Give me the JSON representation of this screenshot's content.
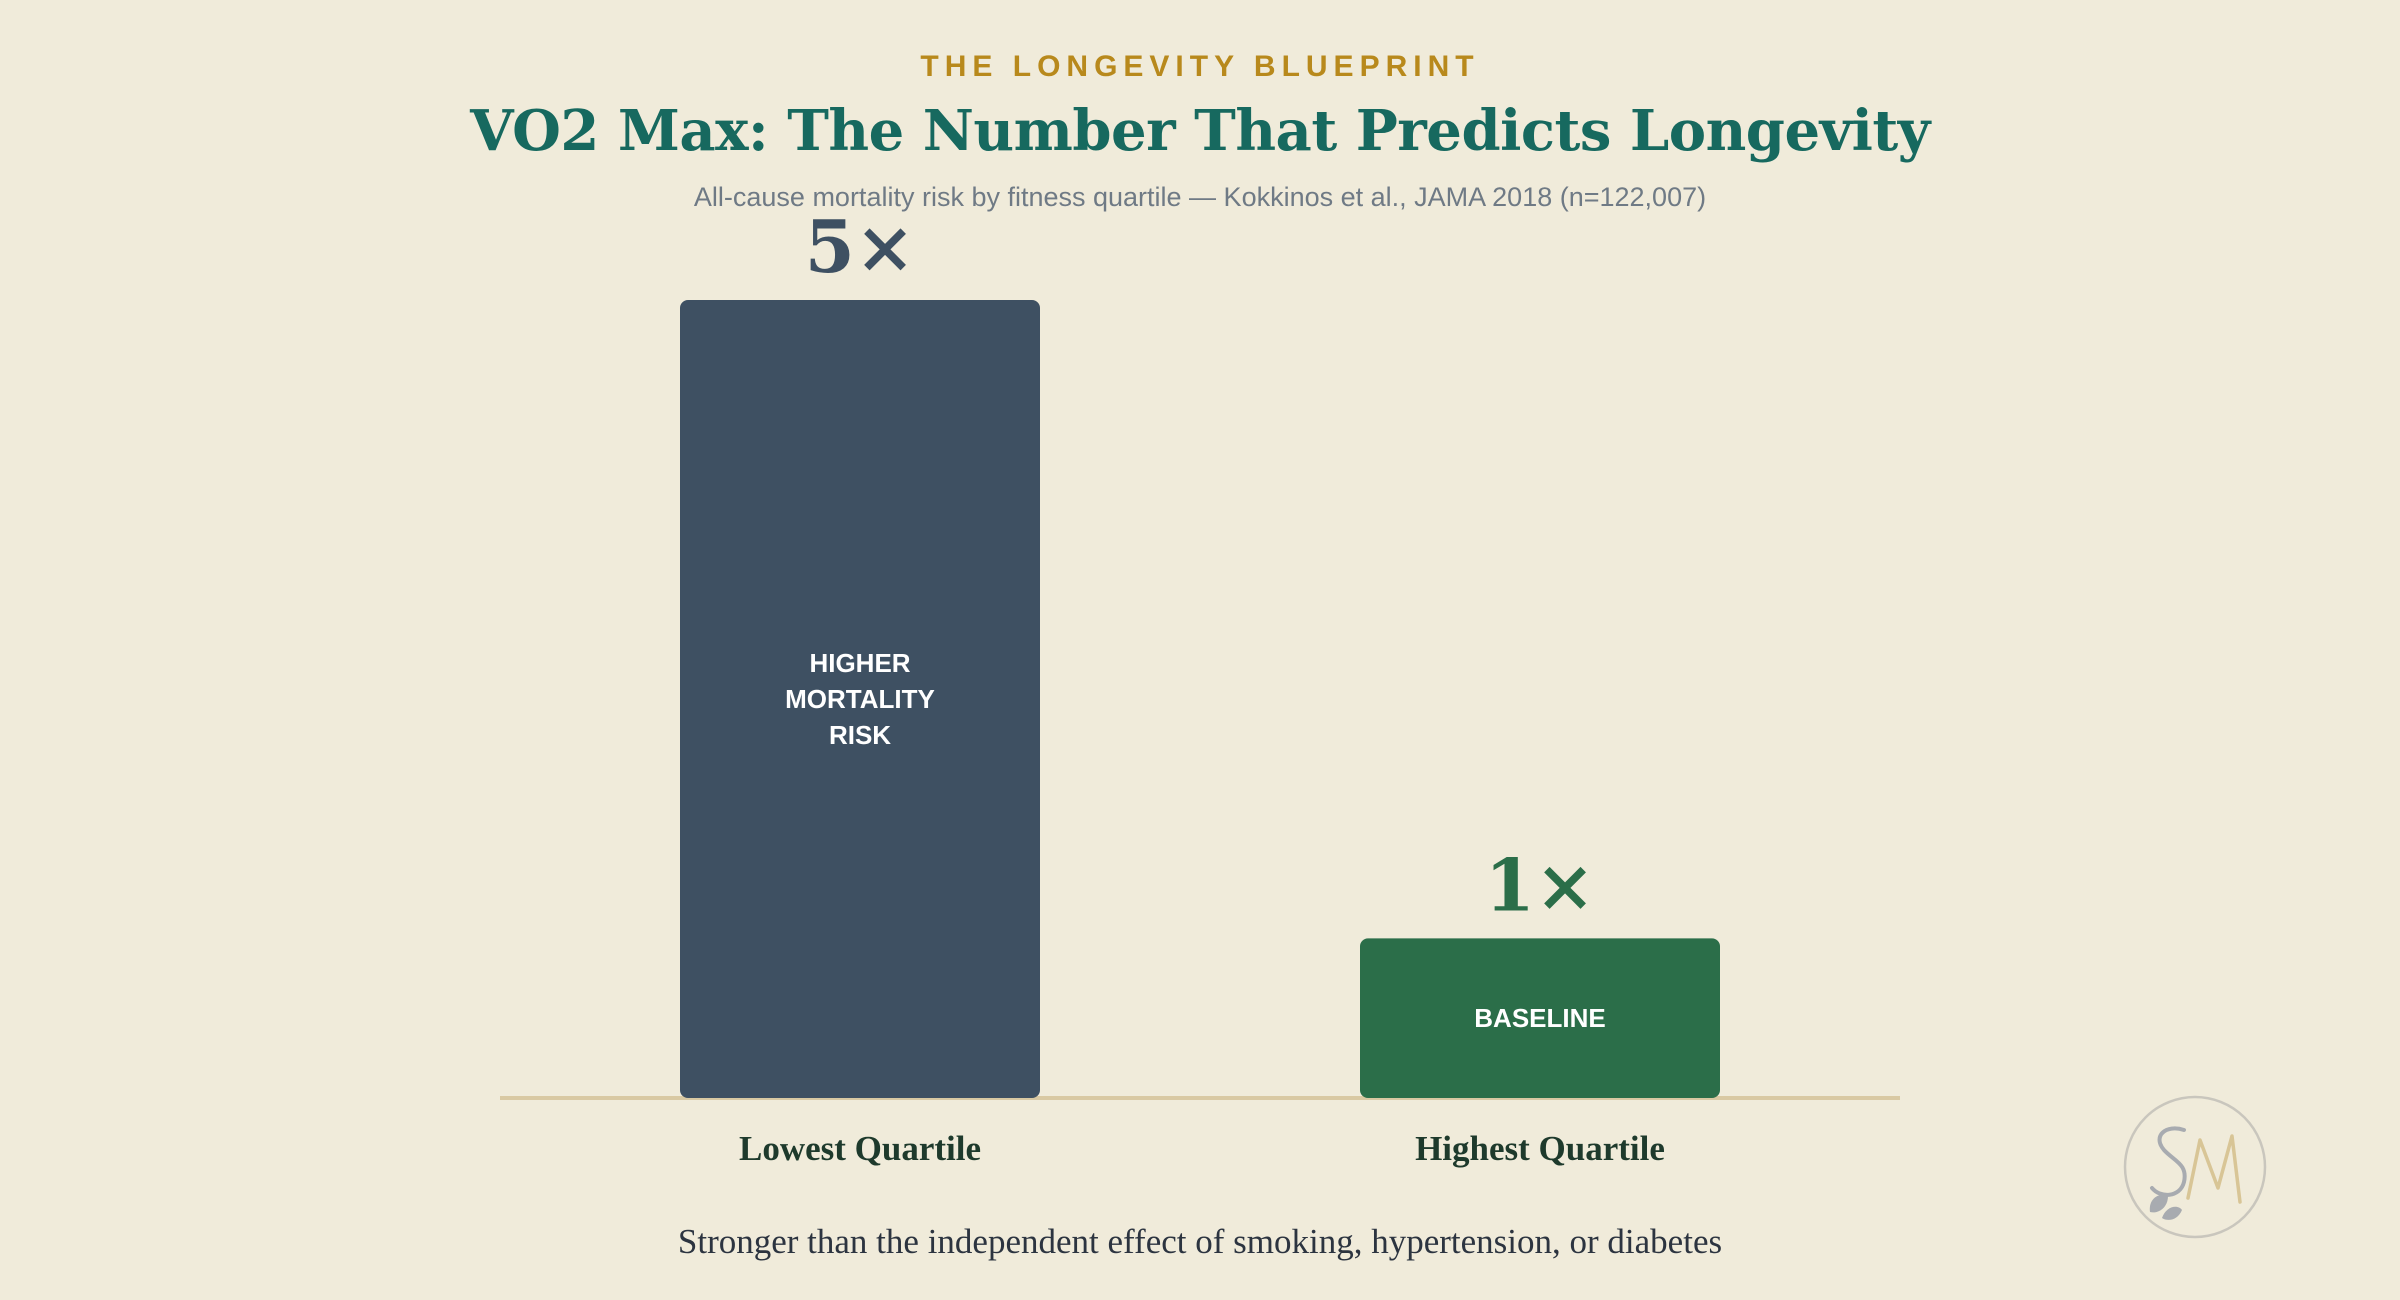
{
  "header": {
    "eyebrow": "THE LONGEVITY BLUEPRINT",
    "title": "VO2 Max: The Number That Predicts Longevity",
    "subtitle": "All-cause mortality risk by fitness quartile — Kokkinos et al., JAMA 2018 (n=122,007)"
  },
  "chart_data": {
    "type": "bar",
    "categories": [
      "Lowest Quartile",
      "Highest Quartile"
    ],
    "values": [
      5,
      1
    ],
    "value_labels": [
      "5×",
      "1×"
    ],
    "bar_text": [
      [
        "HIGHER",
        "MORTALITY",
        "RISK"
      ],
      [
        "BASELINE"
      ]
    ],
    "colors": [
      "#3e5062",
      "#2b6e49"
    ],
    "ylim": [
      0,
      5
    ],
    "grid": false,
    "legend": "none"
  },
  "footer": {
    "note": "Stronger than the independent effect of smoking, hypertension, or diabetes"
  },
  "logo": {
    "icon": "sm-monogram-logo",
    "letters": "SM"
  },
  "colors": {
    "background": "#f0ebda",
    "eyebrow": "#b8891c",
    "title": "#17695f",
    "baseline": "#d9c9a3"
  }
}
